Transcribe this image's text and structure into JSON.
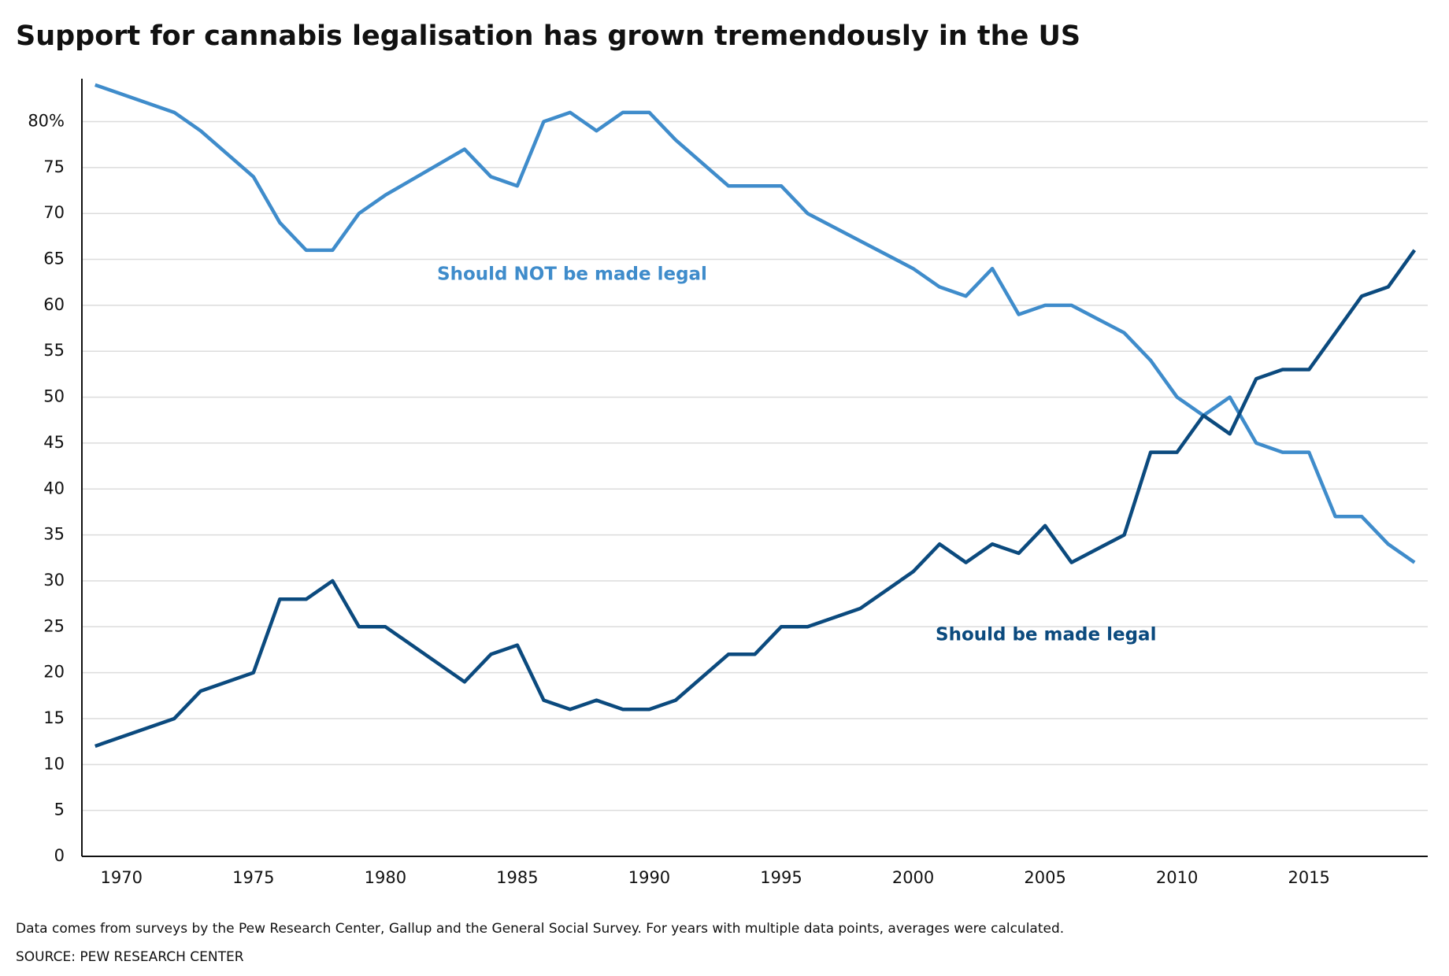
{
  "chart_data": {
    "type": "line",
    "title": "Support for cannabis legalisation has grown tremendously in the US",
    "notes": [
      "Data comes from surveys by the Pew Research Center, Gallup and the General Social Survey. For years with multiple data points, averages were calculated.",
      "SOURCE: PEW RESEARCH CENTER"
    ],
    "x": [
      1969,
      1972,
      1973,
      1975,
      1976,
      1977,
      1978,
      1979,
      1980,
      1983,
      1984,
      1985,
      1986,
      1987,
      1988,
      1989,
      1990,
      1991,
      1993,
      1994,
      1995,
      1996,
      1998,
      2000,
      2001,
      2002,
      2003,
      2004,
      2005,
      2006,
      2008,
      2009,
      2010,
      2011,
      2012,
      2013,
      2014,
      2015,
      2016,
      2017,
      2018,
      2019
    ],
    "series": [
      {
        "name": "Should NOT be made legal",
        "color": "#3f8ccb",
        "values": [
          84,
          81,
          79,
          74,
          69,
          66,
          66,
          70,
          72,
          77,
          74,
          73,
          80,
          81,
          79,
          81,
          81,
          78,
          73,
          73,
          73,
          70,
          67,
          64,
          62,
          61,
          64,
          59,
          60,
          60,
          57,
          54,
          50,
          48,
          50,
          45,
          44,
          44,
          37,
          37,
          34,
          32
        ]
      },
      {
        "name": "Should be made legal",
        "color": "#0b4a7e",
        "values": [
          12,
          15,
          18,
          20,
          28,
          28,
          30,
          25,
          25,
          19,
          22,
          23,
          17,
          16,
          17,
          16,
          16,
          17,
          22,
          22,
          25,
          25,
          27,
          31,
          34,
          32,
          34,
          33,
          36,
          32,
          35,
          44,
          44,
          48,
          46,
          52,
          53,
          53,
          57,
          61,
          62,
          66
        ]
      }
    ],
    "xlim": [
      1968.5,
      2019.5
    ],
    "xticks": [
      1970,
      1975,
      1980,
      1985,
      1990,
      1995,
      2000,
      2005,
      2010,
      2015
    ],
    "ylim": [
      0,
      84.5
    ],
    "yticks": [
      0,
      5,
      10,
      15,
      20,
      25,
      30,
      35,
      40,
      45,
      50,
      55,
      60,
      65,
      70,
      75,
      {
        "value": 80,
        "label": "80%"
      }
    ],
    "grid": true
  }
}
